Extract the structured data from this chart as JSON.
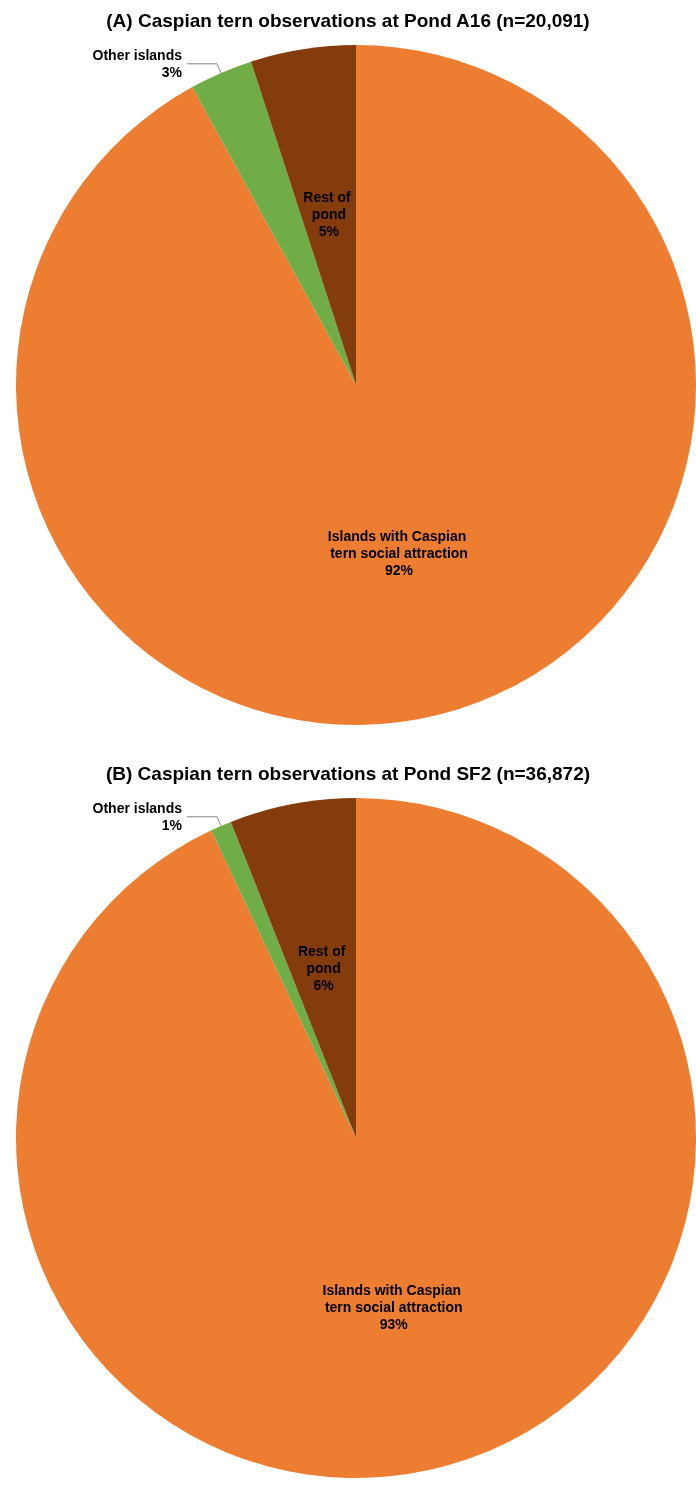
{
  "chart_data": [
    {
      "type": "pie",
      "title": "(A) Caspian tern observations at Pond A16 (n=20,091)",
      "categories": [
        "Islands with Caspian tern social attraction",
        "Other islands",
        "Rest of pond"
      ],
      "values": [
        92,
        3,
        5
      ],
      "value_labels": [
        "92%",
        "3%",
        "5%"
      ],
      "colors": [
        "#ed7d31",
        "#70ad47",
        "#843c0c"
      ]
    },
    {
      "type": "pie",
      "title": "(B) Caspian tern observations at Pond SF2 (n=36,872)",
      "categories": [
        "Islands with Caspian tern social attraction",
        "Other islands",
        "Rest of pond"
      ],
      "values": [
        93,
        1,
        6
      ],
      "value_labels": [
        "93%",
        "1%",
        "6%"
      ],
      "colors": [
        "#ed7d31",
        "#70ad47",
        "#843c0c"
      ]
    }
  ]
}
